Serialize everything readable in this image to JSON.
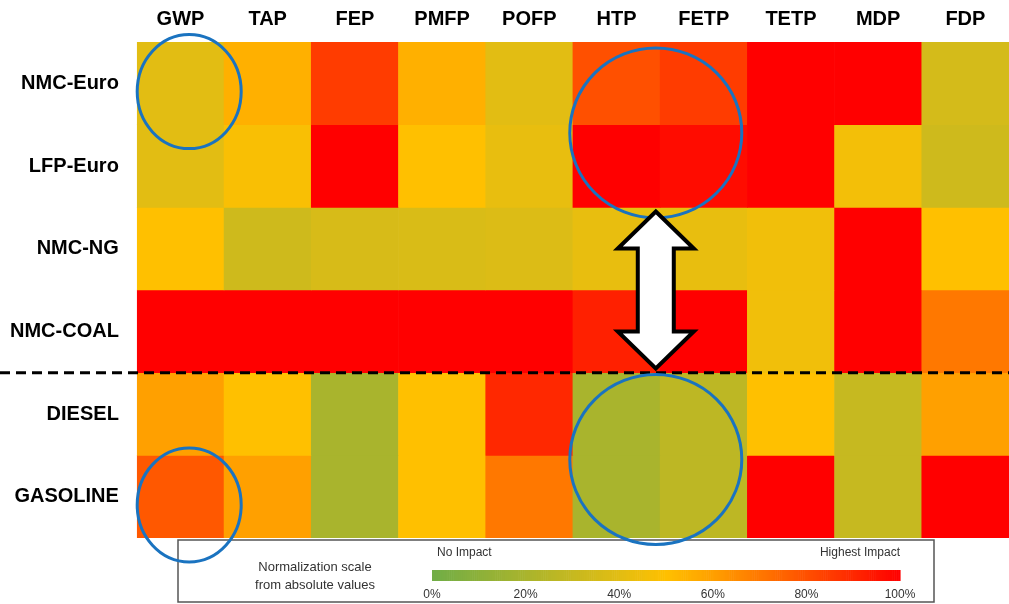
{
  "chart_data": {
    "type": "heatmap",
    "categories": [
      "GWP",
      "TAP",
      "FEP",
      "PMFP",
      "POFP",
      "HTP",
      "FETP",
      "TETP",
      "MDP",
      "FDP"
    ],
    "y_categories": [
      "NMC-Euro",
      "LFP-Euro",
      "NMC-NG",
      "NMC-COAL",
      "DIESEL",
      "GASOLINE"
    ],
    "cells": [
      [
        40,
        55,
        85,
        55,
        40,
        80,
        85,
        100,
        100,
        35
      ],
      [
        40,
        48,
        100,
        50,
        42,
        100,
        97,
        100,
        46,
        33
      ],
      [
        50,
        33,
        36,
        37,
        38,
        42,
        42,
        45,
        100,
        50
      ],
      [
        100,
        100,
        100,
        100,
        100,
        92,
        100,
        45,
        100,
        70
      ],
      [
        60,
        50,
        20,
        50,
        90,
        20,
        27,
        50,
        30,
        60
      ],
      [
        78,
        60,
        20,
        50,
        70,
        20,
        27,
        100,
        30,
        100
      ]
    ],
    "clabel": "Normalization scale\nfrom absolute values",
    "clim": [
      0,
      100
    ],
    "cticks": [
      {
        "value": 0,
        "label": "0%"
      },
      {
        "value": 20,
        "label": "20%"
      },
      {
        "value": 40,
        "label": "40%"
      },
      {
        "value": 60,
        "label": "60%"
      },
      {
        "value": 80,
        "label": "80%"
      },
      {
        "value": 100,
        "label": "100%"
      }
    ],
    "annotations": [
      "No Impact",
      "Highest Impact"
    ]
  }
}
